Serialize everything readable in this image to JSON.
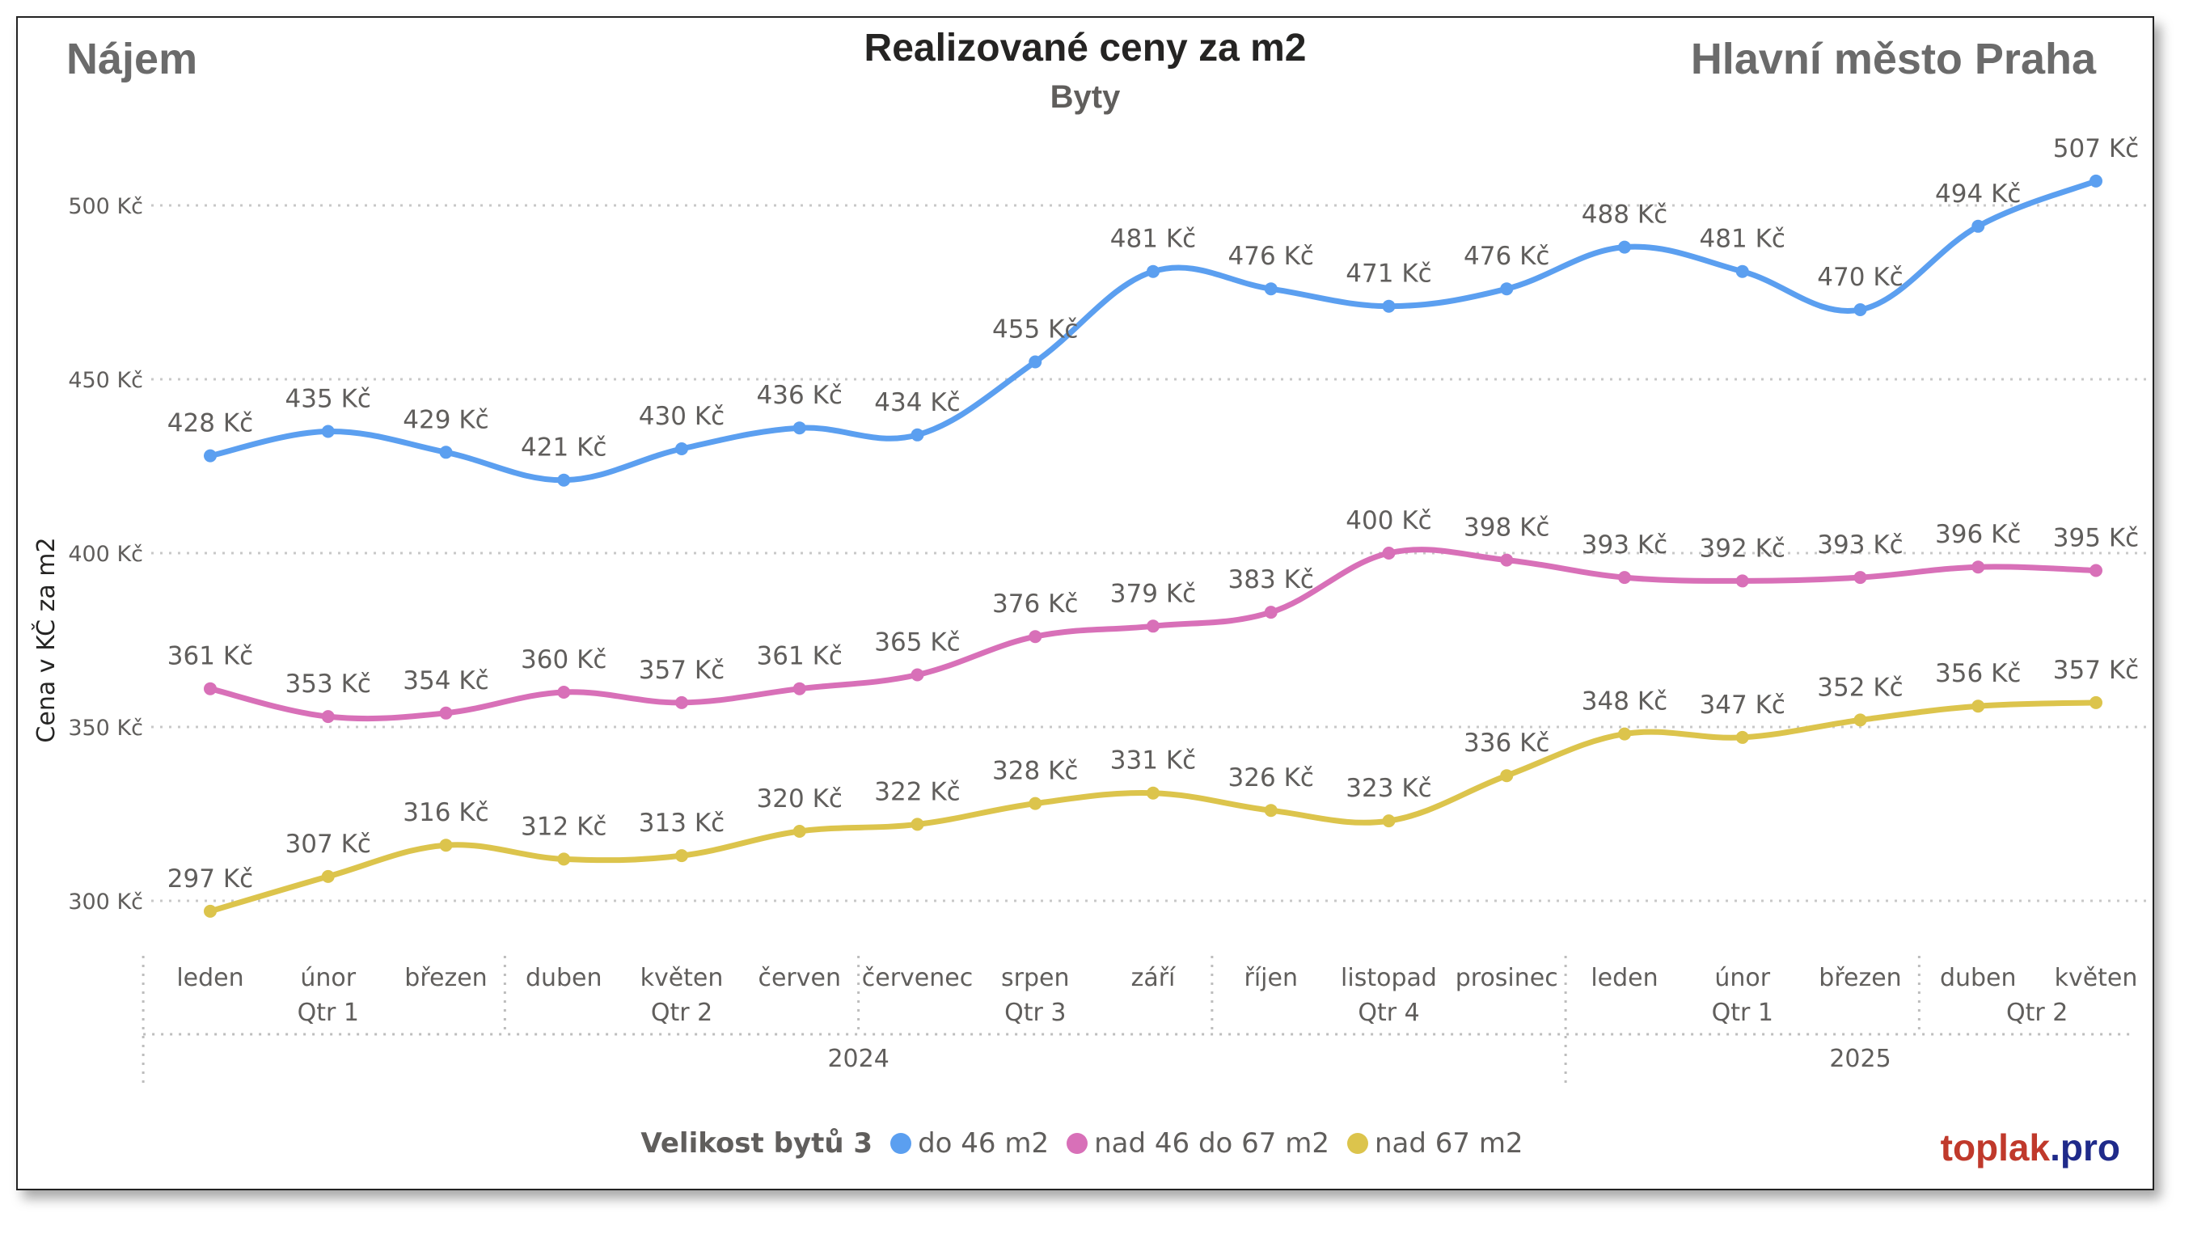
{
  "header": {
    "left": "Nájem",
    "right": "Hlavní město Praha"
  },
  "chart_data": {
    "type": "line",
    "title": "Realizované ceny za m2",
    "subtitle": "Byty",
    "ylabel": "Cena v KČ za m2",
    "xlabel": "",
    "ylim": [
      285,
      530
    ],
    "yticks": [
      300,
      350,
      400,
      450,
      500
    ],
    "ytick_labels": [
      "300 Kč",
      "350 Kč",
      "400 Kč",
      "450 Kč",
      "500 Kč"
    ],
    "grid": "horizontal dotted",
    "categories": [
      "leden",
      "únor",
      "březen",
      "duben",
      "květen",
      "červen",
      "červenec",
      "srpen",
      "září",
      "říjen",
      "listopad",
      "prosinec",
      "leden",
      "únor",
      "březen",
      "duben",
      "květen"
    ],
    "quarters": [
      {
        "label": "Qtr 1",
        "start": 0,
        "end": 2
      },
      {
        "label": "Qtr 2",
        "start": 3,
        "end": 5
      },
      {
        "label": "Qtr 3",
        "start": 6,
        "end": 8
      },
      {
        "label": "Qtr 4",
        "start": 9,
        "end": 11
      },
      {
        "label": "Qtr 1",
        "start": 12,
        "end": 14
      },
      {
        "label": "Qtr 2",
        "start": 15,
        "end": 16
      }
    ],
    "years": [
      {
        "label": "2024",
        "start": 0,
        "end": 11
      },
      {
        "label": "2025",
        "start": 12,
        "end": 16
      }
    ],
    "value_suffix": " Kč",
    "series": [
      {
        "name": "do 46 m2",
        "color": "#5b9ff0",
        "values": [
          428,
          435,
          429,
          421,
          430,
          436,
          434,
          455,
          481,
          476,
          471,
          476,
          488,
          481,
          470,
          494,
          507
        ]
      },
      {
        "name": "nad 46 do 67 m2",
        "color": "#d870b8",
        "values": [
          361,
          353,
          354,
          360,
          357,
          361,
          365,
          376,
          379,
          383,
          400,
          398,
          393,
          392,
          393,
          396,
          395
        ]
      },
      {
        "name": "nad 67 m2",
        "color": "#dcc44c",
        "values": [
          297,
          307,
          316,
          312,
          313,
          320,
          322,
          328,
          331,
          326,
          323,
          336,
          348,
          347,
          352,
          356,
          357
        ]
      }
    ],
    "legend": {
      "title": "Velikost bytů 3",
      "position": "bottom-center"
    }
  },
  "brand": {
    "part1": "toplak",
    "part2": ".pro",
    "color1": "#c0392b",
    "color2": "#1f2a8a"
  }
}
